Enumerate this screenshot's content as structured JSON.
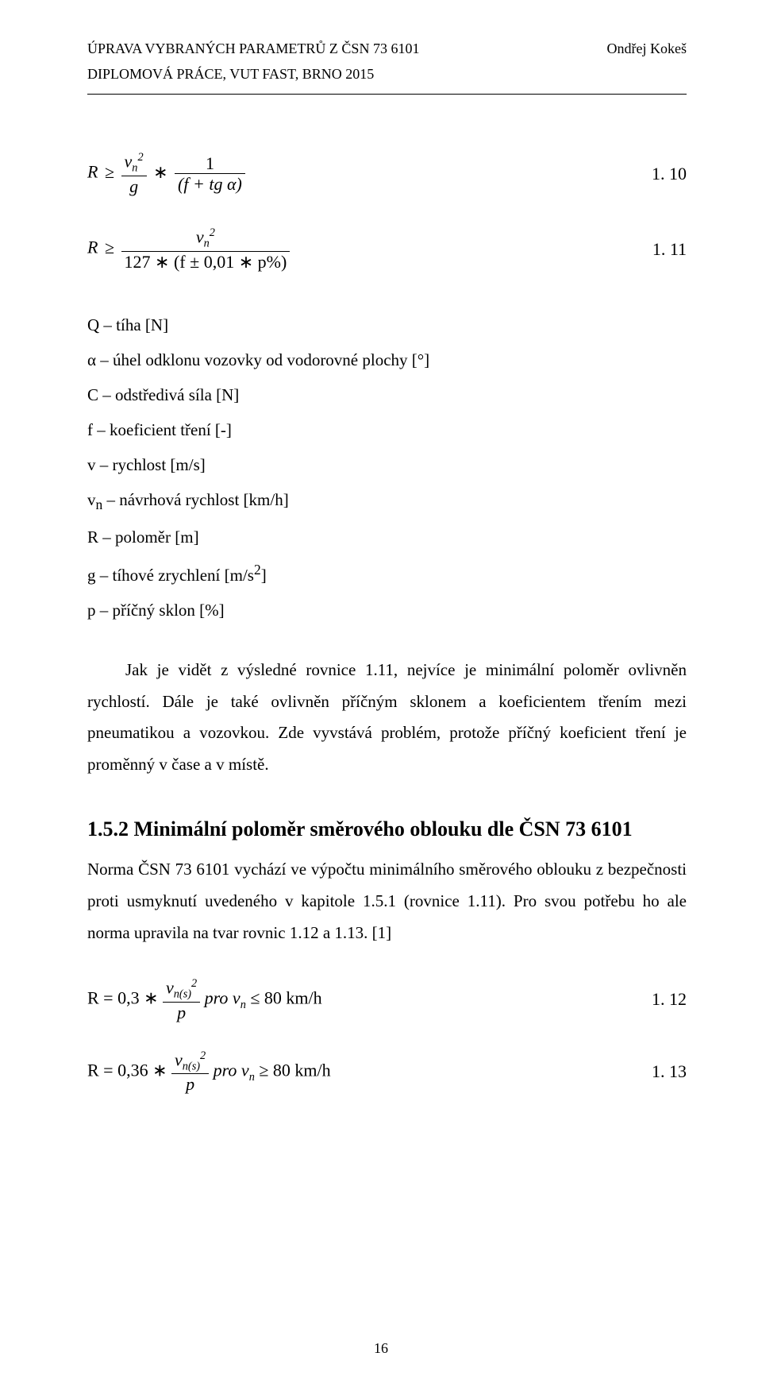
{
  "header": {
    "left_top": "ÚPRAVA VYBRANÝCH PARAMETRŮ Z ČSN 73 6101",
    "right_top": "Ondřej Kokeš",
    "left_sub": "DIPLOMOVÁ PRÁCE, VUT FAST, BRNO 2015"
  },
  "equations": {
    "eq1_num": "1. 10",
    "eq2_num": "1. 11",
    "eq3_num": "1. 12",
    "eq4_num": "1. 13",
    "eq1_R": "R",
    "eq1_ge": "≥",
    "eq1_vn2_num": "v",
    "eq1_vn2_sub": "n",
    "eq1_vn2_sup": "2",
    "eq1_g": "g",
    "eq1_star": "∗",
    "eq1_one": "1",
    "eq1_den": "(f + tg α)",
    "eq2_R": "R",
    "eq2_ge": "≥",
    "eq2_num_v": "v",
    "eq2_num_sub": "n",
    "eq2_num_sup": "2",
    "eq2_den": "127 ∗ (f ± 0,01 ∗ p%)",
    "eq3_lhs_pre": "R = 0,3 ∗",
    "eq3_num_v": "v",
    "eq3_num_sub": "n(s)",
    "eq3_num_sup": "2",
    "eq3_den": "p",
    "eq3_tail": "   pro v",
    "eq3_tail_sub": "n",
    "eq3_tail2": " ≤ 80 km/h",
    "eq4_lhs_pre": "R = 0,36 ∗",
    "eq4_num_v": "v",
    "eq4_num_sub": "n(s)",
    "eq4_num_sup": "2",
    "eq4_den": "p",
    "eq4_tail": "   pro v",
    "eq4_tail_sub": "n",
    "eq4_tail2": " ≥ 80 km/h"
  },
  "defs": {
    "d1": "Q – tíha [N]",
    "d2": "α – úhel odklonu vozovky od vodorovné plochy [°]",
    "d3": "C – odstředivá síla [N]",
    "d4": "f – koeficient tření [-]",
    "d5": "v – rychlost [m/s]",
    "d6_pre": "v",
    "d6_sub": "n",
    "d6_post": " – návrhová rychlost [km/h]",
    "d7": "R – poloměr [m]",
    "d8_pre": "g – tíhové zrychlení [m/s",
    "d8_sup": "2",
    "d8_post": "]",
    "d9": "p – příčný sklon [%]"
  },
  "para1": "Jak je vidět z výsledné rovnice 1.11, nejvíce je minimální poloměr ovlivněn rychlostí. Dále je také ovlivněn příčným sklonem a koeficientem třením mezi pneumatikou a vozovkou. Zde vyvstává problém, protože příčný koeficient tření je proměnný v čase a v místě.",
  "heading": "1.5.2  Minimální poloměr směrového oblouku dle ČSN 73 6101",
  "para2": "Norma ČSN 73 6101 vychází ve výpočtu minimálního směrového oblouku z bezpečnosti proti usmyknutí uvedeného v kapitole 1.5.1 (rovnice 1.11). Pro svou potřebu ho ale norma upravila na tvar rovnic 1.12 a 1.13. [1]",
  "page_number": "16"
}
